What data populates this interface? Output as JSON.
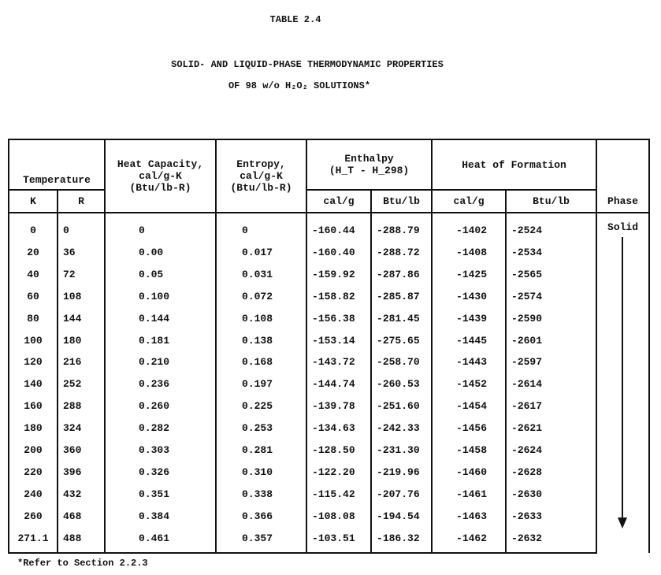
{
  "title": "TABLE 2.4",
  "subtitle_line1": "SOLID- AND LIQUID-PHASE THERMODYNAMIC PROPERTIES",
  "subtitle_line2": "OF 98 w/o H₂O₂ SOLUTIONS*",
  "footnote": "*Refer to Section 2.2.3",
  "headers": {
    "temperature": "Temperature",
    "k": "K",
    "r": "R",
    "heat_capacity": "Heat Capacity,",
    "heat_capacity_unit1": "cal/g-K",
    "heat_capacity_unit2": "(Btu/lb-R)",
    "entropy": "Entropy,",
    "entropy_unit1": "cal/g-K",
    "entropy_unit2": "(Btu/lb-R)",
    "enthalpy": "Enthalpy",
    "enthalpy_sub": "(H_T - H_298)",
    "heat_of_formation": "Heat of Formation",
    "cal_g": "cal/g",
    "btu_lb": "Btu/lb",
    "phase": "Phase"
  },
  "phase_label": "Solid",
  "rows": [
    [
      "0",
      "0",
      "0",
      "0",
      "-160.44",
      "-288.79",
      "-1402",
      "-2524"
    ],
    [
      "20",
      "36",
      "0.00",
      "0.017",
      "-160.40",
      "-288.72",
      "-1408",
      "-2534"
    ],
    [
      "40",
      "72",
      "0.05",
      "0.031",
      "-159.92",
      "-287.86",
      "-1425",
      "-2565"
    ],
    [
      "60",
      "108",
      "0.100",
      "0.072",
      "-158.82",
      "-285.87",
      "-1430",
      "-2574"
    ],
    [
      "80",
      "144",
      "0.144",
      "0.108",
      "-156.38",
      "-281.45",
      "-1439",
      "-2590"
    ],
    [
      "100",
      "180",
      "0.181",
      "0.138",
      "-153.14",
      "-275.65",
      "-1445",
      "-2601"
    ],
    [
      "120",
      "216",
      "0.210",
      "0.168",
      "-143.72",
      "-258.70",
      "-1443",
      "-2597"
    ],
    [
      "140",
      "252",
      "0.236",
      "0.197",
      "-144.74",
      "-260.53",
      "-1452",
      "-2614"
    ],
    [
      "160",
      "288",
      "0.260",
      "0.225",
      "-139.78",
      "-251.60",
      "-1454",
      "-2617"
    ],
    [
      "180",
      "324",
      "0.282",
      "0.253",
      "-134.63",
      "-242.33",
      "-1456",
      "-2621"
    ],
    [
      "200",
      "360",
      "0.303",
      "0.281",
      "-128.50",
      "-231.30",
      "-1458",
      "-2624"
    ],
    [
      "220",
      "396",
      "0.326",
      "0.310",
      "-122.20",
      "-219.96",
      "-1460",
      "-2628"
    ],
    [
      "240",
      "432",
      "0.351",
      "0.338",
      "-115.42",
      "-207.76",
      "-1461",
      "-2630"
    ],
    [
      "260",
      "468",
      "0.384",
      "0.366",
      "-108.08",
      "-194.54",
      "-1463",
      "-2633"
    ],
    [
      "271.1",
      "488",
      "0.461",
      "0.357",
      "-103.51",
      "-186.32",
      "-1462",
      "-2632"
    ]
  ]
}
